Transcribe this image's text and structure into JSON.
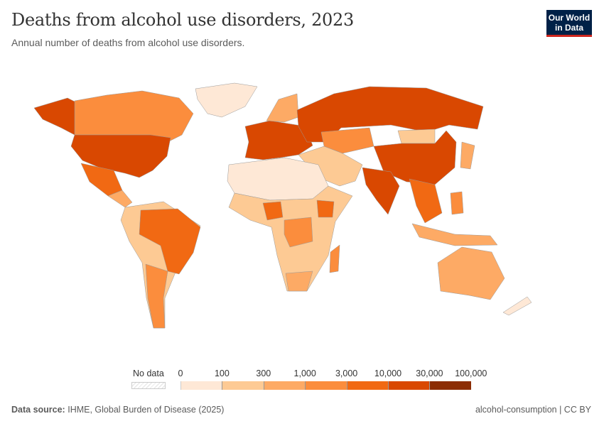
{
  "header": {
    "title": "Deaths from alcohol use disorders, 2023",
    "subtitle": "Annual number of deaths from alcohol use disorders."
  },
  "logo": {
    "line1": "Our World",
    "line2": "in Data",
    "bg_color": "#002147",
    "accent_color": "#ce261e"
  },
  "footer": {
    "source_label": "Data source:",
    "source": "IHME, Global Burden of Disease (2025)",
    "right": "alcohol-consumption | CC BY"
  },
  "chart_data": {
    "type": "map",
    "title": "Deaths from alcohol use disorders, 2023",
    "legend": {
      "no_data_label": "No data",
      "ticks": [
        "0",
        "100",
        "300",
        "1,000",
        "3,000",
        "10,000",
        "30,000",
        "100,000"
      ],
      "bin_colors": [
        "#fee8d6",
        "#fdca94",
        "#fdaa65",
        "#fb8d3d",
        "#f16913",
        "#d94801",
        "#8c2d04"
      ]
    },
    "regions": [
      {
        "name": "Greenland",
        "bin": 0
      },
      {
        "name": "Canada",
        "bin": 3
      },
      {
        "name": "Alaska (United States)",
        "bin": 5
      },
      {
        "name": "United States",
        "bin": 5
      },
      {
        "name": "Mexico",
        "bin": 4
      },
      {
        "name": "Central America",
        "bin": 2
      },
      {
        "name": "South America",
        "bin": 1
      },
      {
        "name": "Brazil",
        "bin": 4
      },
      {
        "name": "Argentina",
        "bin": 3
      },
      {
        "name": "Western Europe",
        "bin": 5
      },
      {
        "name": "Scandinavia",
        "bin": 2
      },
      {
        "name": "Russia",
        "bin": 5
      },
      {
        "name": "Kazakhstan",
        "bin": 3
      },
      {
        "name": "Mongolia",
        "bin": 1
      },
      {
        "name": "China",
        "bin": 5
      },
      {
        "name": "Middle East",
        "bin": 1
      },
      {
        "name": "India",
        "bin": 5
      },
      {
        "name": "North Africa",
        "bin": 0
      },
      {
        "name": "Sub-Saharan Africa",
        "bin": 1
      },
      {
        "name": "Nigeria",
        "bin": 4
      },
      {
        "name": "Ethiopia",
        "bin": 4
      },
      {
        "name": "DR Congo",
        "bin": 3
      },
      {
        "name": "South Africa",
        "bin": 2
      },
      {
        "name": "Madagascar",
        "bin": 3
      },
      {
        "name": "Southeast Asia",
        "bin": 4
      },
      {
        "name": "Japan",
        "bin": 2
      },
      {
        "name": "Indonesia",
        "bin": 2
      },
      {
        "name": "Philippines",
        "bin": 3
      },
      {
        "name": "Australia",
        "bin": 2
      },
      {
        "name": "New Zealand",
        "bin": 0
      }
    ]
  }
}
